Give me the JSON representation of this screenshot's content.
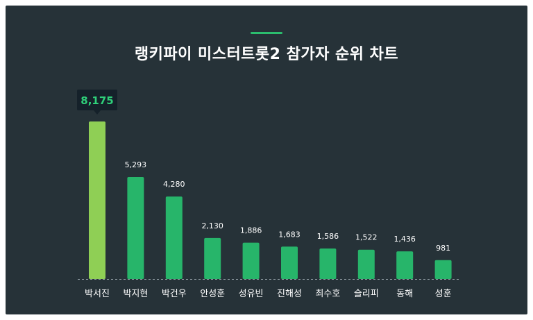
{
  "chart_data": {
    "type": "bar",
    "title": "랭키파이 미스터트롯2 참가자 순위 차트",
    "categories": [
      "박서진",
      "박지현",
      "박건우",
      "안성훈",
      "성유빈",
      "진해성",
      "최수호",
      "슬리피",
      "동해",
      "성훈"
    ],
    "values": [
      8175,
      5293,
      4280,
      2130,
      1886,
      1683,
      1586,
      1522,
      1436,
      981
    ],
    "value_labels": [
      "8,175",
      "5,293",
      "4,280",
      "2,130",
      "1,886",
      "1,683",
      "1,586",
      "1,522",
      "1,436",
      "981"
    ],
    "highlight_index": 0,
    "ylim": [
      0,
      8175
    ],
    "grid": false,
    "legend": "none",
    "colors": {
      "background": "#263238",
      "bar": "#27b56a",
      "bar_highlight": "#8fcf55",
      "label": "#ffffff",
      "highlight_label": "#2fd07a",
      "tooltip_bg": "#15212a",
      "accent": "#2bbd6e"
    }
  }
}
